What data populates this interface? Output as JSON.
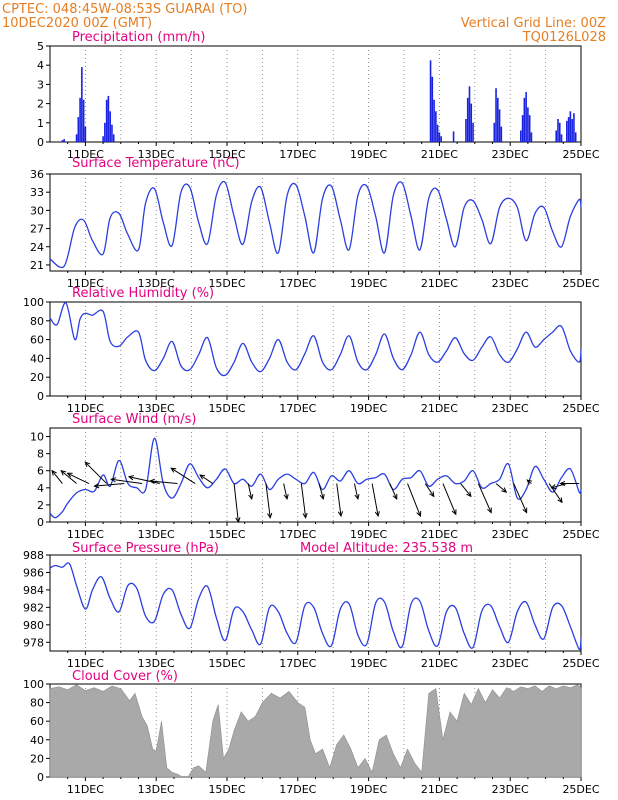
{
  "header": {
    "line1": "CPTEC:   048:45W-08:53S   GUARAI (TO)",
    "line2": "10DEC2020 00Z (GMT)",
    "right1": "Vertical Grid Line: 00Z",
    "right2": "TQ0126L028"
  },
  "colors": {
    "header": "#e67e22",
    "panel_title": "#e6007e",
    "line": "#2b3fe0",
    "bar": "#1a22e0",
    "cloud": "#a9a9a9",
    "arrow": "#000000"
  },
  "date_ticks": [
    "11DEC",
    "13DEC",
    "15DEC",
    "17DEC",
    "19DEC",
    "21DEC",
    "23DEC",
    "25DEC"
  ],
  "chart_data": [
    {
      "type": "bar",
      "title": "Precipitation (mm/h)",
      "ylim": [
        0,
        5
      ],
      "yticks": [
        "0",
        "1",
        "2",
        "3",
        "4",
        "5"
      ],
      "x": [
        10.35,
        10.4,
        10.75,
        10.8,
        10.85,
        10.9,
        10.95,
        11.0,
        11.5,
        11.55,
        11.6,
        11.65,
        11.7,
        11.75,
        11.8,
        20.75,
        20.8,
        20.85,
        20.9,
        20.95,
        21.0,
        21.05,
        21.4,
        21.75,
        21.8,
        21.85,
        21.9,
        21.95,
        22.55,
        22.6,
        22.65,
        22.7,
        22.75,
        23.3,
        23.35,
        23.4,
        23.45,
        23.5,
        23.55,
        23.6,
        24.3,
        24.35,
        24.4,
        24.45,
        24.6,
        24.65,
        24.7,
        24.75,
        24.8,
        24.85
      ],
      "values": [
        0.1,
        0.15,
        0.4,
        1.3,
        2.3,
        3.9,
        2.2,
        0.8,
        0.3,
        1.0,
        2.2,
        2.4,
        1.6,
        0.9,
        0.4,
        4.25,
        3.4,
        2.2,
        1.6,
        0.9,
        0.5,
        0.3,
        0.55,
        1.2,
        2.3,
        2.9,
        2.0,
        1.0,
        1.0,
        2.8,
        2.3,
        1.7,
        0.8,
        0.6,
        1.4,
        2.3,
        2.6,
        1.8,
        1.4,
        0.5,
        0.6,
        1.2,
        1.0,
        0.4,
        1.1,
        1.3,
        1.6,
        1.2,
        1.5,
        0.5
      ]
    },
    {
      "type": "line",
      "title": "Surface Temperature (nC)",
      "ylim": [
        20,
        36
      ],
      "yticks": [
        "21",
        "24",
        "27",
        "30",
        "33",
        "36"
      ],
      "x": [
        10.0,
        10.4,
        10.7,
        10.95,
        11.2,
        11.5,
        11.7,
        11.95,
        12.2,
        12.5,
        12.7,
        12.95,
        13.2,
        13.45,
        13.7,
        13.95,
        14.2,
        14.45,
        14.7,
        14.95,
        15.2,
        15.45,
        15.7,
        15.95,
        16.2,
        16.45,
        16.7,
        16.95,
        17.2,
        17.45,
        17.7,
        17.95,
        18.2,
        18.45,
        18.7,
        18.95,
        19.2,
        19.45,
        19.7,
        19.95,
        20.2,
        20.45,
        20.7,
        20.95,
        21.2,
        21.45,
        21.7,
        21.95,
        22.2,
        22.45,
        22.7,
        22.95,
        23.2,
        23.45,
        23.7,
        23.95,
        24.2,
        24.45,
        24.7,
        24.95,
        25.0
      ],
      "values": [
        22.0,
        20.8,
        27.2,
        28.4,
        25.0,
        22.8,
        28.8,
        29.5,
        26.0,
        23.5,
        31.2,
        33.6,
        28.0,
        24.2,
        33.0,
        33.8,
        28.0,
        24.5,
        32.5,
        34.6,
        29.0,
        24.4,
        31.5,
        33.8,
        28.0,
        23.0,
        32.5,
        34.2,
        29.0,
        23.0,
        32.0,
        34.0,
        28.5,
        23.5,
        32.5,
        34.0,
        29.0,
        23.0,
        32.5,
        34.5,
        29.0,
        23.5,
        32.0,
        33.4,
        28.5,
        24.0,
        30.5,
        31.6,
        28.5,
        24.5,
        30.5,
        32.0,
        30.5,
        25.0,
        29.5,
        30.5,
        26.5,
        24.0,
        29.0,
        31.8,
        30.5
      ]
    },
    {
      "type": "line",
      "title": "Relative Humidity (%)",
      "ylim": [
        0,
        100
      ],
      "yticks": [
        "0",
        "20",
        "40",
        "60",
        "80",
        "100"
      ],
      "x": [
        10.0,
        10.2,
        10.45,
        10.7,
        10.85,
        11.0,
        11.2,
        11.5,
        11.7,
        11.95,
        12.2,
        12.5,
        12.7,
        12.95,
        13.2,
        13.45,
        13.7,
        13.95,
        14.2,
        14.45,
        14.7,
        14.95,
        15.2,
        15.45,
        15.7,
        15.95,
        16.2,
        16.45,
        16.7,
        16.95,
        17.2,
        17.45,
        17.7,
        17.95,
        18.2,
        18.45,
        18.7,
        18.95,
        19.2,
        19.45,
        19.7,
        19.95,
        20.2,
        20.45,
        20.7,
        20.95,
        21.2,
        21.45,
        21.7,
        21.95,
        22.2,
        22.45,
        22.7,
        22.95,
        23.2,
        23.45,
        23.7,
        23.95,
        24.2,
        24.45,
        24.7,
        24.95,
        25.0
      ],
      "values": [
        83.0,
        76.0,
        99.0,
        60.0,
        82.0,
        88.0,
        86.0,
        90.0,
        58.0,
        53.0,
        63.0,
        68.0,
        38.0,
        27.0,
        40.0,
        58.0,
        32.0,
        28.0,
        44.0,
        62.0,
        30.0,
        22.0,
        36.0,
        56.0,
        36.0,
        26.0,
        40.0,
        60.0,
        36.0,
        28.0,
        45.0,
        64.0,
        36.0,
        28.0,
        44.0,
        64.0,
        36.0,
        28.0,
        44.0,
        66.0,
        40.0,
        28.0,
        44.0,
        68.0,
        44.0,
        36.0,
        48.0,
        62.0,
        45.0,
        38.0,
        52.0,
        63.0,
        44.0,
        36.0,
        50.0,
        68.0,
        52.0,
        60.0,
        68.0,
        74.0,
        48.0,
        36.0,
        50.0
      ]
    },
    {
      "type": "line",
      "title": "Surface Wind (m/s)",
      "ylim": [
        0,
        11
      ],
      "yticks": [
        "0",
        "2",
        "4",
        "6",
        "8",
        "10"
      ],
      "x": [
        10.0,
        10.15,
        10.35,
        10.5,
        10.75,
        11.0,
        11.25,
        11.5,
        11.7,
        11.95,
        12.2,
        12.45,
        12.7,
        12.95,
        13.2,
        13.45,
        13.7,
        13.95,
        14.2,
        14.45,
        14.7,
        14.95,
        15.2,
        15.45,
        15.7,
        15.95,
        16.2,
        16.45,
        16.7,
        16.95,
        17.2,
        17.45,
        17.7,
        17.95,
        18.2,
        18.45,
        18.7,
        18.95,
        19.2,
        19.45,
        19.7,
        19.95,
        20.2,
        20.45,
        20.7,
        20.95,
        21.2,
        21.45,
        21.7,
        21.95,
        22.2,
        22.45,
        22.7,
        22.95,
        23.2,
        23.45,
        23.7,
        23.95,
        24.2,
        24.45,
        24.7,
        24.95,
        25.0
      ],
      "values": [
        1.0,
        0.5,
        1.2,
        2.2,
        3.4,
        3.8,
        3.6,
        5.5,
        4.2,
        7.2,
        4.5,
        4.0,
        3.8,
        9.8,
        4.5,
        2.8,
        4.5,
        6.8,
        5.2,
        4.0,
        5.0,
        6.2,
        4.5,
        5.0,
        4.2,
        5.6,
        3.8,
        5.0,
        5.6,
        5.0,
        4.5,
        5.8,
        3.8,
        5.4,
        4.8,
        6.0,
        4.5,
        5.0,
        5.2,
        5.6,
        3.8,
        5.0,
        5.2,
        6.0,
        4.2,
        5.0,
        5.4,
        4.5,
        4.8,
        6.0,
        4.0,
        4.5,
        5.0,
        6.8,
        2.8,
        3.8,
        6.5,
        5.0,
        3.5,
        5.2,
        6.2,
        3.5,
        3.8
      ],
      "arrows": [
        {
          "x": 10.35,
          "u": -1.2,
          "v": -1.5
        },
        {
          "x": 10.75,
          "u": -1.8,
          "v": -1.5
        },
        {
          "x": 11.1,
          "u": -2.5,
          "v": -1.2
        },
        {
          "x": 11.6,
          "u": -2.5,
          "v": -2.5
        },
        {
          "x": 12.1,
          "u": -3.5,
          "v": 0.3
        },
        {
          "x": 12.6,
          "u": -3.6,
          "v": -0.5
        },
        {
          "x": 13.1,
          "u": -3.6,
          "v": -0.8
        },
        {
          "x": 13.6,
          "u": -3.2,
          "v": -0.3
        },
        {
          "x": 14.1,
          "u": -2.8,
          "v": -1.8
        },
        {
          "x": 14.6,
          "u": -1.5,
          "v": -1.0
        },
        {
          "x": 15.2,
          "u": 0.5,
          "v": 4.5
        },
        {
          "x": 15.6,
          "u": 0.4,
          "v": 1.8
        },
        {
          "x": 16.1,
          "u": 0.5,
          "v": 4.0
        },
        {
          "x": 16.6,
          "u": 0.4,
          "v": 1.8
        },
        {
          "x": 17.1,
          "u": 0.5,
          "v": 4.0
        },
        {
          "x": 17.6,
          "u": 0.5,
          "v": 1.8
        },
        {
          "x": 18.1,
          "u": 0.5,
          "v": 3.8
        },
        {
          "x": 18.6,
          "u": 0.4,
          "v": 1.8
        },
        {
          "x": 19.1,
          "u": 0.7,
          "v": 3.8
        },
        {
          "x": 19.6,
          "u": 0.8,
          "v": 1.8
        },
        {
          "x": 20.1,
          "u": 1.5,
          "v": 3.8
        },
        {
          "x": 20.6,
          "u": 1.0,
          "v": 1.5
        },
        {
          "x": 21.1,
          "u": 1.5,
          "v": 3.6
        },
        {
          "x": 21.6,
          "u": 1.2,
          "v": 1.5
        },
        {
          "x": 22.1,
          "u": 1.5,
          "v": 3.4
        },
        {
          "x": 22.6,
          "u": 1.2,
          "v": 1.0
        },
        {
          "x": 23.1,
          "u": 1.5,
          "v": 3.4
        },
        {
          "x": 23.6,
          "u": -0.5,
          "v": -0.4
        },
        {
          "x": 24.1,
          "u": 1.5,
          "v": 2.2
        },
        {
          "x": 24.6,
          "u": -1.8,
          "v": 0.5
        },
        {
          "x": 24.95,
          "u": -2.2,
          "v": 0.0
        }
      ]
    },
    {
      "type": "line",
      "title": "Surface Pressure (hPa)",
      "annotation": "Model Altitude: 235.538  m",
      "ylim": [
        977,
        988
      ],
      "yticks": [
        "978",
        "980",
        "982",
        "984",
        "986",
        "988"
      ],
      "x": [
        10.0,
        10.15,
        10.35,
        10.55,
        10.75,
        11.0,
        11.2,
        11.45,
        11.7,
        11.95,
        12.2,
        12.45,
        12.7,
        12.95,
        13.2,
        13.45,
        13.7,
        13.95,
        14.2,
        14.45,
        14.7,
        14.95,
        15.2,
        15.45,
        15.7,
        15.95,
        16.2,
        16.45,
        16.7,
        16.95,
        17.2,
        17.45,
        17.7,
        17.95,
        18.2,
        18.45,
        18.7,
        18.95,
        19.2,
        19.45,
        19.7,
        19.95,
        20.2,
        20.45,
        20.7,
        20.95,
        21.2,
        21.45,
        21.7,
        21.95,
        22.2,
        22.45,
        22.7,
        22.95,
        23.2,
        23.45,
        23.7,
        23.95,
        24.2,
        24.45,
        24.7,
        24.95,
        25.0
      ],
      "values": [
        986.5,
        986.8,
        986.6,
        987.0,
        984.5,
        981.8,
        984.0,
        985.5,
        983.0,
        981.5,
        984.5,
        984.2,
        981.0,
        980.4,
        983.5,
        984.0,
        981.2,
        979.6,
        983.0,
        984.4,
        980.8,
        978.2,
        981.8,
        981.5,
        979.4,
        977.8,
        982.0,
        981.5,
        979.0,
        978.0,
        982.2,
        982.0,
        979.0,
        977.6,
        981.8,
        982.4,
        978.8,
        977.8,
        982.5,
        982.6,
        979.2,
        977.5,
        982.4,
        982.7,
        979.3,
        977.6,
        981.5,
        982.0,
        979.0,
        977.4,
        981.6,
        982.2,
        979.8,
        978.0,
        981.5,
        982.6,
        980.0,
        978.4,
        982.0,
        982.2,
        979.8,
        977.2,
        978.5
      ]
    },
    {
      "type": "area",
      "title": "Cloud Cover (%)",
      "ylim": [
        0,
        100
      ],
      "yticks": [
        "0",
        "20",
        "40",
        "60",
        "80",
        "100"
      ],
      "x": [
        10.0,
        10.25,
        10.5,
        10.75,
        11.0,
        11.25,
        11.5,
        11.75,
        12.0,
        12.25,
        12.4,
        12.6,
        12.75,
        12.9,
        13.0,
        13.15,
        13.3,
        13.45,
        13.6,
        13.75,
        13.9,
        14.05,
        14.2,
        14.4,
        14.6,
        14.75,
        14.9,
        15.05,
        15.2,
        15.4,
        15.6,
        15.8,
        16.0,
        16.25,
        16.5,
        16.75,
        17.0,
        17.2,
        17.35,
        17.5,
        17.7,
        17.9,
        18.1,
        18.3,
        18.5,
        18.7,
        18.9,
        19.1,
        19.3,
        19.5,
        19.7,
        19.9,
        20.1,
        20.3,
        20.5,
        20.7,
        20.9,
        21.1,
        21.3,
        21.5,
        21.7,
        21.9,
        22.1,
        22.3,
        22.5,
        22.7,
        22.9,
        23.1,
        23.3,
        23.5,
        23.7,
        23.9,
        24.1,
        24.3,
        24.5,
        24.7,
        24.9,
        25.0
      ],
      "values": [
        95.0,
        97.0,
        94.0,
        99.0,
        93.0,
        96.0,
        92.0,
        98.0,
        95.0,
        82.0,
        90.0,
        65.0,
        55.0,
        30.0,
        28.0,
        60.0,
        10.0,
        5.0,
        3.0,
        0.0,
        0.0,
        10.0,
        12.0,
        5.0,
        60.0,
        78.0,
        20.0,
        30.0,
        50.0,
        70.0,
        60.0,
        65.0,
        80.0,
        90.0,
        85.0,
        92.0,
        80.0,
        75.0,
        40.0,
        25.0,
        30.0,
        10.0,
        35.0,
        45.0,
        30.0,
        10.0,
        20.0,
        5.0,
        40.0,
        45.0,
        25.0,
        10.0,
        30.0,
        15.0,
        5.0,
        90.0,
        95.0,
        40.0,
        70.0,
        60.0,
        90.0,
        78.0,
        95.0,
        80.0,
        94.0,
        85.0,
        96.0,
        92.0,
        97.0,
        95.0,
        98.0,
        92.0,
        98.0,
        95.0,
        98.0,
        96.0,
        99.0,
        96.0
      ]
    }
  ]
}
